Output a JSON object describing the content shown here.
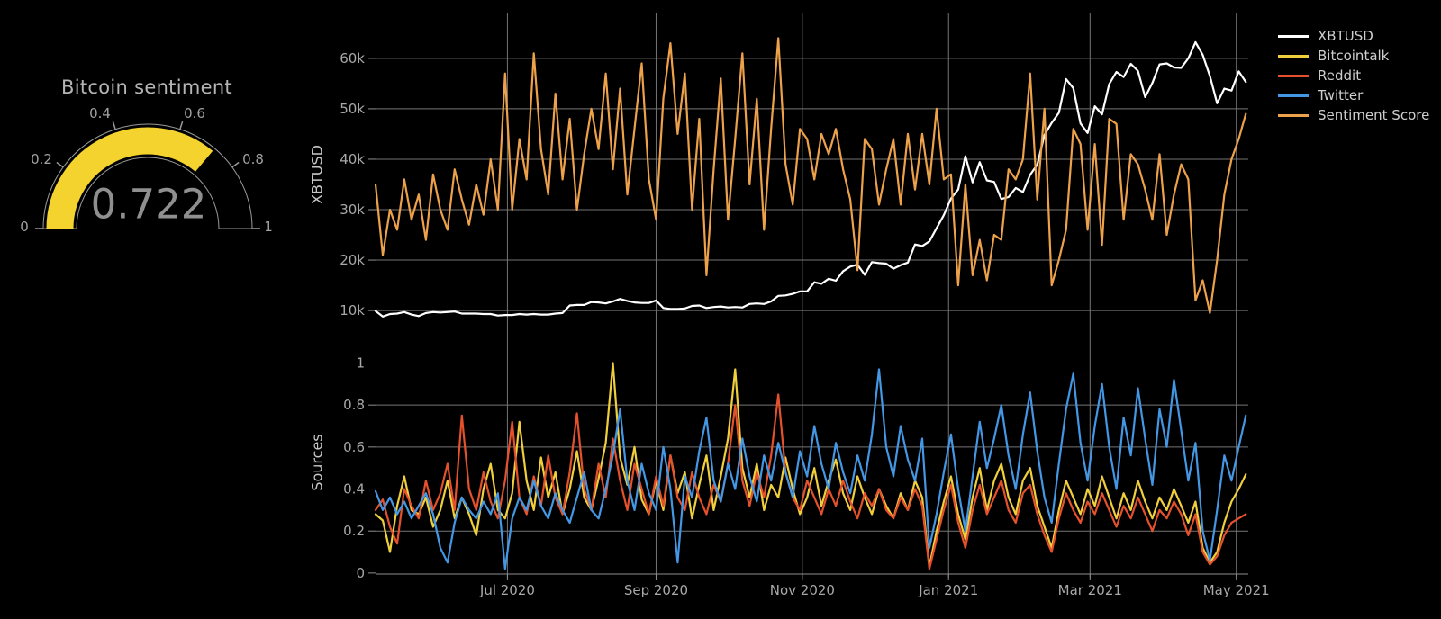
{
  "gauge": {
    "title": "Bitcoin sentiment",
    "value": 0.722,
    "value_text": "0.722",
    "min": 0,
    "max": 1,
    "bar_color": "#f5d32e",
    "ticks": [
      {
        "value": 0,
        "label": "0"
      },
      {
        "value": 0.2,
        "label": "0.2"
      },
      {
        "value": 0.4,
        "label": "0.4"
      },
      {
        "value": 0.6,
        "label": "0.6"
      },
      {
        "value": 0.8,
        "label": "0.8"
      },
      {
        "value": 1,
        "label": "1"
      }
    ]
  },
  "legend": {
    "items": [
      {
        "label": "XBTUSD",
        "color": "#ffffff"
      },
      {
        "label": "Bitcointalk",
        "color": "#f0cf3d"
      },
      {
        "label": "Reddit",
        "color": "#e5512c"
      },
      {
        "label": "Twitter",
        "color": "#4497e4"
      },
      {
        "label": "Sentiment Score",
        "color": "#eda14a"
      }
    ]
  },
  "chart_data": [
    {
      "type": "gauge",
      "title": "Bitcoin sentiment",
      "value": 0.722,
      "range": [
        0,
        1
      ],
      "tick_values": [
        0,
        0.2,
        0.4,
        0.6,
        0.8,
        1
      ]
    },
    {
      "type": "line",
      "y_axis_title": "XBTUSD",
      "x_start": "2020-05-07",
      "x_step_days": 3,
      "ylim": [
        2700,
        68900
      ],
      "grid": true,
      "legend_position": "top-right-outside",
      "x_ticks": [
        {
          "label": "Jul 2020",
          "day": 55
        },
        {
          "label": "Sep 2020",
          "day": 117
        },
        {
          "label": "Nov 2020",
          "day": 178
        },
        {
          "label": "Jan 2021",
          "day": 239
        },
        {
          "label": "Mar 2021",
          "day": 298
        },
        {
          "label": "May 2021",
          "day": 359
        }
      ],
      "y_ticks": [
        {
          "value": 10000,
          "label": "10k"
        },
        {
          "value": 20000,
          "label": "20k"
        },
        {
          "value": 30000,
          "label": "30k"
        },
        {
          "value": 40000,
          "label": "40k"
        },
        {
          "value": 50000,
          "label": "50k"
        },
        {
          "value": 60000,
          "label": "60k"
        }
      ],
      "series": [
        {
          "name": "XBTUSD",
          "color": "#ffffff",
          "unit": "USD",
          "values": [
            9900,
            8800,
            9300,
            9400,
            9700,
            9200,
            8900,
            9500,
            9700,
            9600,
            9700,
            9800,
            9400,
            9400,
            9400,
            9300,
            9300,
            9000,
            9100,
            9100,
            9300,
            9200,
            9300,
            9200,
            9200,
            9400,
            9500,
            11000,
            11100,
            11100,
            11700,
            11600,
            11400,
            11800,
            12300,
            11900,
            11600,
            11500,
            11500,
            12000,
            10500,
            10300,
            10300,
            10400,
            10900,
            11000,
            10500,
            10700,
            10800,
            10600,
            10700,
            10600,
            11300,
            11400,
            11300,
            11800,
            12900,
            13000,
            13300,
            13800,
            13800,
            15600,
            15300,
            16300,
            15900,
            17800,
            18700,
            19100,
            17100,
            19600,
            19400,
            19300,
            18300,
            19000,
            19500,
            23100,
            22800,
            23700,
            26300,
            28900,
            32200,
            34000,
            40600,
            35400,
            39400,
            35800,
            35500,
            32100,
            32500,
            34300,
            33500,
            36900,
            38900,
            44800,
            47200,
            49200,
            55900,
            54100,
            47100,
            45200,
            50500,
            48900,
            54900,
            57300,
            56300,
            58900,
            57500,
            52300,
            55100,
            58800,
            59000,
            58200,
            58100,
            60000,
            63200,
            60700,
            56500,
            51100,
            54000,
            53600,
            57400,
            55300
          ]
        },
        {
          "name": "Sentiment Score",
          "color": "#eda14a",
          "unit": "scaled to price axis",
          "values": [
            35000,
            21000,
            30000,
            26000,
            36000,
            28000,
            33000,
            24000,
            37000,
            30000,
            26000,
            38000,
            32000,
            27000,
            35000,
            29000,
            40000,
            30000,
            57000,
            30000,
            44000,
            36000,
            61000,
            42000,
            33000,
            53000,
            36000,
            48000,
            30000,
            41000,
            50000,
            42000,
            57000,
            38000,
            54000,
            33000,
            46000,
            59000,
            36000,
            28000,
            52000,
            63000,
            45000,
            57000,
            30000,
            48000,
            17000,
            38000,
            56000,
            28000,
            44000,
            61000,
            35000,
            52000,
            26000,
            46000,
            64000,
            39000,
            31000,
            46000,
            44000,
            36000,
            45000,
            41000,
            46000,
            38000,
            32000,
            18000,
            44000,
            42000,
            31000,
            38000,
            44000,
            31000,
            45000,
            34000,
            45000,
            35000,
            50000,
            36000,
            37000,
            15000,
            35000,
            17000,
            24000,
            16000,
            25000,
            24000,
            38000,
            36000,
            40000,
            57000,
            32000,
            50000,
            15000,
            20000,
            26000,
            46000,
            43000,
            26000,
            43000,
            23000,
            48000,
            47000,
            28000,
            41000,
            39000,
            34000,
            28000,
            41000,
            25000,
            33000,
            39000,
            36000,
            12000,
            16000,
            9500,
            20000,
            33000,
            40000,
            44000,
            49000
          ]
        }
      ]
    },
    {
      "type": "line",
      "y_axis_title": "Sources",
      "x_start": "2020-05-07",
      "x_step_days": 3,
      "ylim": [
        -0.022,
        1.075
      ],
      "grid": true,
      "x_ticks": [
        {
          "label": "Jul 2020",
          "day": 55
        },
        {
          "label": "Sep 2020",
          "day": 117
        },
        {
          "label": "Nov 2020",
          "day": 178
        },
        {
          "label": "Jan 2021",
          "day": 239
        },
        {
          "label": "Mar 2021",
          "day": 298
        },
        {
          "label": "May 2021",
          "day": 359
        }
      ],
      "y_ticks": [
        {
          "value": 0,
          "label": "0"
        },
        {
          "value": 0.2,
          "label": "0.2"
        },
        {
          "value": 0.4,
          "label": "0.4"
        },
        {
          "value": 0.6,
          "label": "0.6"
        },
        {
          "value": 0.8,
          "label": "0.8"
        },
        {
          "value": 1,
          "label": "1"
        }
      ],
      "series": [
        {
          "name": "Bitcointalk",
          "color": "#f0cf3d",
          "values": [
            0.28,
            0.25,
            0.1,
            0.32,
            0.46,
            0.3,
            0.28,
            0.36,
            0.22,
            0.3,
            0.44,
            0.26,
            0.36,
            0.28,
            0.18,
            0.4,
            0.52,
            0.3,
            0.26,
            0.38,
            0.72,
            0.44,
            0.3,
            0.55,
            0.36,
            0.48,
            0.28,
            0.4,
            0.58,
            0.36,
            0.3,
            0.45,
            0.62,
            1.0,
            0.55,
            0.42,
            0.6,
            0.35,
            0.28,
            0.44,
            0.3,
            0.56,
            0.38,
            0.48,
            0.26,
            0.42,
            0.56,
            0.3,
            0.46,
            0.64,
            0.97,
            0.5,
            0.36,
            0.52,
            0.3,
            0.42,
            0.36,
            0.55,
            0.4,
            0.28,
            0.36,
            0.5,
            0.32,
            0.44,
            0.54,
            0.38,
            0.3,
            0.46,
            0.36,
            0.28,
            0.4,
            0.32,
            0.26,
            0.38,
            0.3,
            0.44,
            0.36,
            0.03,
            0.2,
            0.34,
            0.46,
            0.28,
            0.16,
            0.36,
            0.5,
            0.3,
            0.44,
            0.52,
            0.36,
            0.28,
            0.44,
            0.5,
            0.32,
            0.22,
            0.12,
            0.3,
            0.44,
            0.36,
            0.28,
            0.4,
            0.32,
            0.46,
            0.36,
            0.26,
            0.38,
            0.3,
            0.44,
            0.34,
            0.26,
            0.36,
            0.3,
            0.4,
            0.32,
            0.24,
            0.34,
            0.12,
            0.05,
            0.1,
            0.24,
            0.34,
            0.4,
            0.47
          ]
        },
        {
          "name": "Reddit",
          "color": "#e5512c",
          "values": [
            0.3,
            0.35,
            0.22,
            0.14,
            0.4,
            0.32,
            0.26,
            0.44,
            0.3,
            0.38,
            0.52,
            0.3,
            0.75,
            0.4,
            0.3,
            0.48,
            0.34,
            0.26,
            0.44,
            0.72,
            0.36,
            0.28,
            0.46,
            0.32,
            0.56,
            0.36,
            0.28,
            0.48,
            0.76,
            0.4,
            0.3,
            0.52,
            0.36,
            0.64,
            0.44,
            0.3,
            0.52,
            0.4,
            0.28,
            0.46,
            0.32,
            0.56,
            0.36,
            0.3,
            0.48,
            0.36,
            0.28,
            0.42,
            0.34,
            0.52,
            0.8,
            0.44,
            0.32,
            0.48,
            0.36,
            0.56,
            0.85,
            0.48,
            0.36,
            0.3,
            0.44,
            0.36,
            0.28,
            0.4,
            0.32,
            0.44,
            0.34,
            0.26,
            0.38,
            0.32,
            0.4,
            0.3,
            0.26,
            0.36,
            0.3,
            0.4,
            0.32,
            0.02,
            0.16,
            0.3,
            0.42,
            0.24,
            0.12,
            0.3,
            0.42,
            0.28,
            0.36,
            0.44,
            0.3,
            0.24,
            0.38,
            0.42,
            0.28,
            0.18,
            0.1,
            0.26,
            0.38,
            0.3,
            0.24,
            0.34,
            0.28,
            0.38,
            0.3,
            0.22,
            0.32,
            0.26,
            0.36,
            0.28,
            0.2,
            0.3,
            0.26,
            0.34,
            0.28,
            0.18,
            0.28,
            0.1,
            0.04,
            0.08,
            0.18,
            0.24,
            0.26,
            0.28
          ]
        },
        {
          "name": "Twitter",
          "color": "#4497e4",
          "values": [
            0.39,
            0.3,
            0.36,
            0.28,
            0.34,
            0.26,
            0.32,
            0.38,
            0.28,
            0.12,
            0.05,
            0.24,
            0.36,
            0.3,
            0.26,
            0.34,
            0.28,
            0.38,
            0.02,
            0.26,
            0.36,
            0.3,
            0.44,
            0.32,
            0.26,
            0.38,
            0.3,
            0.24,
            0.36,
            0.48,
            0.3,
            0.26,
            0.4,
            0.56,
            0.78,
            0.44,
            0.3,
            0.52,
            0.38,
            0.3,
            0.6,
            0.4,
            0.05,
            0.46,
            0.36,
            0.58,
            0.74,
            0.44,
            0.34,
            0.52,
            0.4,
            0.64,
            0.46,
            0.34,
            0.56,
            0.44,
            0.62,
            0.48,
            0.36,
            0.58,
            0.46,
            0.7,
            0.52,
            0.4,
            0.62,
            0.48,
            0.38,
            0.56,
            0.44,
            0.66,
            0.97,
            0.6,
            0.46,
            0.7,
            0.54,
            0.44,
            0.64,
            0.12,
            0.28,
            0.48,
            0.66,
            0.4,
            0.2,
            0.46,
            0.72,
            0.5,
            0.64,
            0.8,
            0.56,
            0.4,
            0.66,
            0.86,
            0.58,
            0.36,
            0.24,
            0.52,
            0.78,
            0.95,
            0.62,
            0.44,
            0.7,
            0.9,
            0.6,
            0.4,
            0.74,
            0.56,
            0.88,
            0.64,
            0.42,
            0.78,
            0.6,
            0.92,
            0.68,
            0.44,
            0.62,
            0.2,
            0.06,
            0.3,
            0.56,
            0.44,
            0.6,
            0.75
          ]
        }
      ]
    }
  ]
}
